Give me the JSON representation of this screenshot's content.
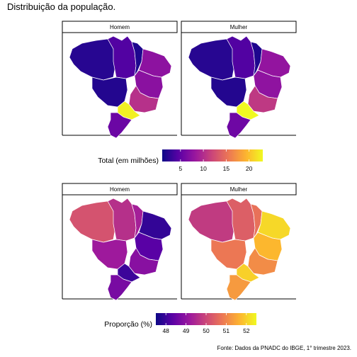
{
  "title": "Distribuição da população.",
  "caption": "Fonte: Dados da PNADC do IBGE, 1° trimestre 2023.",
  "colors": {
    "scale": [
      "#0d0887",
      "#5c01a6",
      "#9c179e",
      "#cc4778",
      "#ed7953",
      "#fdb42f",
      "#f0f921"
    ]
  },
  "chart_data": [
    {
      "type": "choropleth",
      "facets": [
        "Homem",
        "Mulher"
      ],
      "legend": {
        "title": "Total (em milhões)",
        "ticks": [
          5,
          10,
          15,
          20
        ],
        "range": [
          1,
          23
        ]
      },
      "regions": [
        {
          "name": "north-west",
          "values": [
            2.2,
            2.2
          ]
        },
        {
          "name": "north-central",
          "values": [
            4.2,
            4.2
          ]
        },
        {
          "name": "north-east-strip",
          "values": [
            1.8,
            1.8
          ]
        },
        {
          "name": "northeast-coast",
          "values": [
            7.5,
            7.8
          ]
        },
        {
          "name": "central-west",
          "values": [
            2.0,
            2.0
          ]
        },
        {
          "name": "bahia",
          "values": [
            7.3,
            7.6
          ]
        },
        {
          "name": "minas-gerais",
          "values": [
            10.3,
            10.9
          ]
        },
        {
          "name": "sao-paulo",
          "values": [
            22.5,
            23.5
          ]
        },
        {
          "name": "south",
          "values": [
            5.5,
            5.7
          ]
        }
      ]
    },
    {
      "type": "choropleth",
      "facets": [
        "Homem",
        "Mulher"
      ],
      "legend": {
        "title": "Proporção (%)",
        "ticks": [
          48,
          49,
          50,
          51,
          52
        ],
        "range": [
          47.5,
          52.5
        ]
      },
      "regions": [
        {
          "name": "north-west",
          "values": [
            50.2,
            49.8
          ]
        },
        {
          "name": "north-central",
          "values": [
            49.6,
            50.4
          ]
        },
        {
          "name": "north-east-strip",
          "values": [
            49.3,
            50.7
          ]
        },
        {
          "name": "northeast-coast",
          "values": [
            47.9,
            52.1
          ]
        },
        {
          "name": "central-west",
          "values": [
            49.2,
            50.8
          ]
        },
        {
          "name": "bahia",
          "values": [
            48.3,
            51.7
          ]
        },
        {
          "name": "minas-gerais",
          "values": [
            48.9,
            51.1
          ]
        },
        {
          "name": "sao-paulo",
          "values": [
            48.0,
            52.0
          ]
        },
        {
          "name": "south",
          "values": [
            48.7,
            51.3
          ]
        }
      ]
    }
  ]
}
